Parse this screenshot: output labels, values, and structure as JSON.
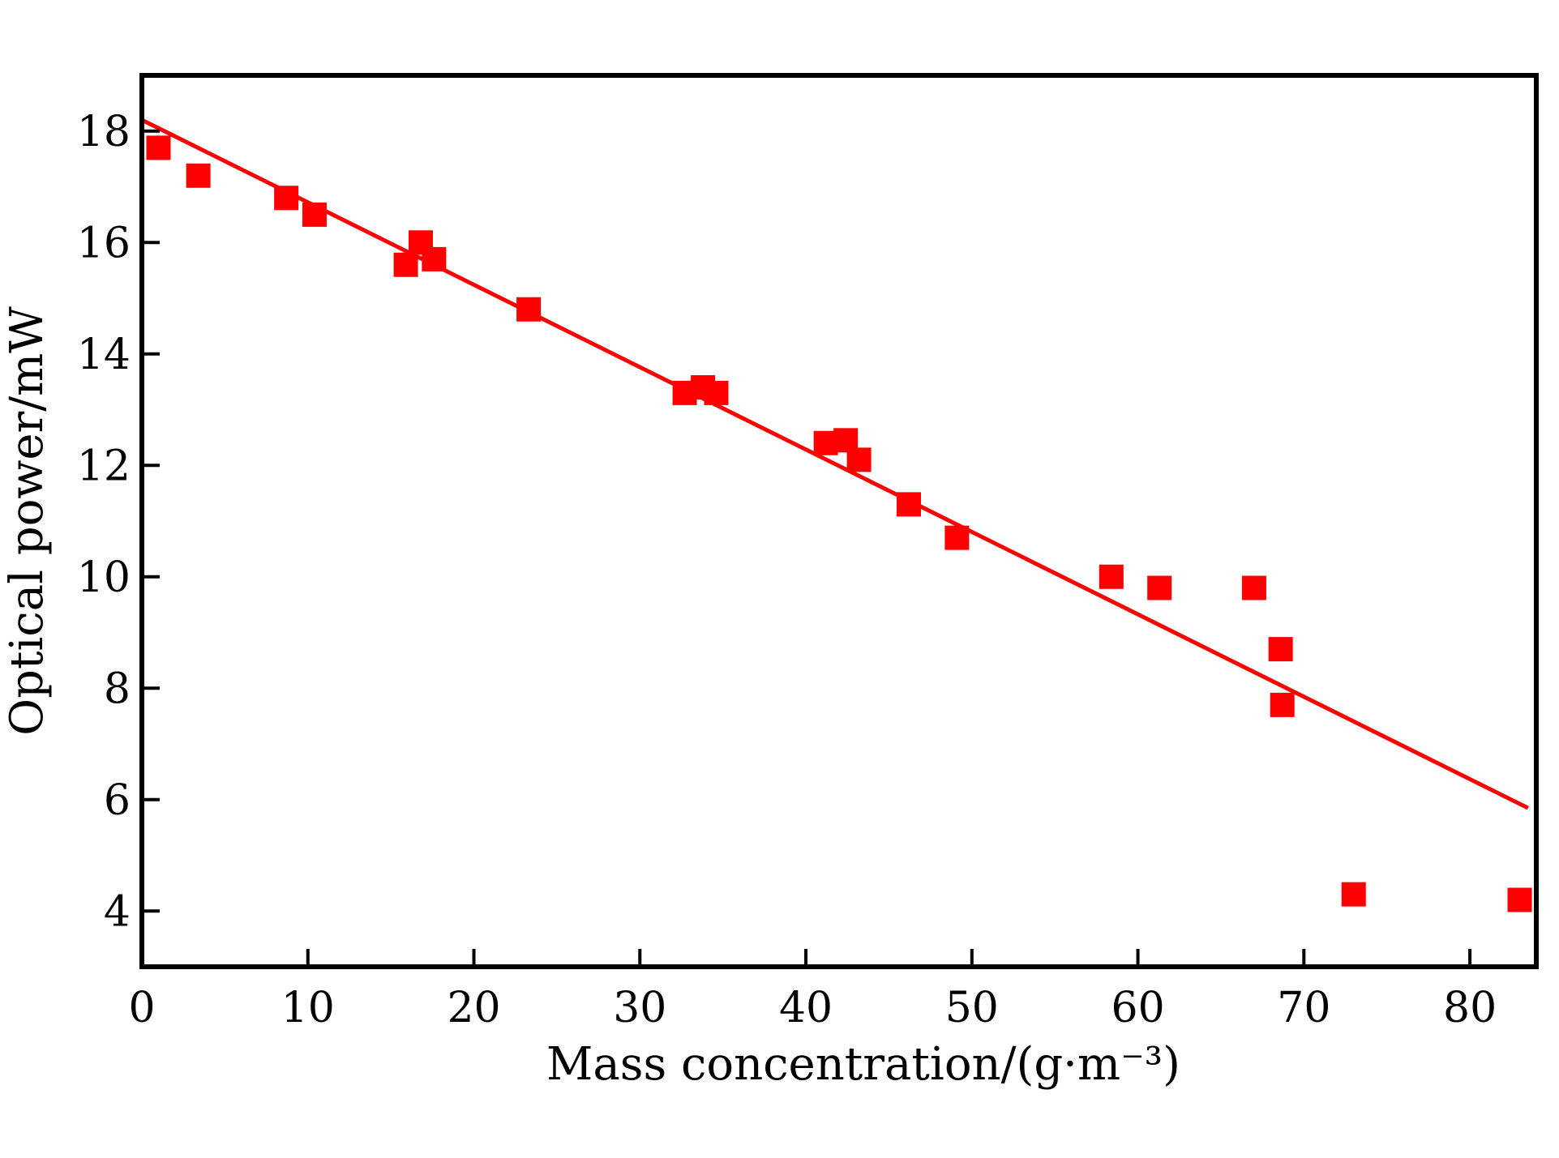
{
  "chart_data": {
    "type": "scatter",
    "xlabel": "Mass concentration/(g·m⁻³)",
    "ylabel": "Optical power/mW",
    "xlim": [
      0,
      84
    ],
    "ylim": [
      3,
      19
    ],
    "x_ticks": [
      0,
      10,
      20,
      30,
      40,
      50,
      60,
      70,
      80
    ],
    "y_ticks": [
      4,
      6,
      8,
      10,
      12,
      14,
      16,
      18
    ],
    "grid": false,
    "series": [
      {
        "type": "scatter",
        "marker": "square",
        "color": "#ff0000",
        "points": [
          {
            "x": 1.0,
            "y": 17.7
          },
          {
            "x": 3.4,
            "y": 17.2
          },
          {
            "x": 8.7,
            "y": 16.8
          },
          {
            "x": 10.4,
            "y": 16.5
          },
          {
            "x": 15.9,
            "y": 15.6
          },
          {
            "x": 16.8,
            "y": 16.0
          },
          {
            "x": 17.6,
            "y": 15.7
          },
          {
            "x": 23.3,
            "y": 14.8
          },
          {
            "x": 32.7,
            "y": 13.3
          },
          {
            "x": 33.8,
            "y": 13.4
          },
          {
            "x": 34.6,
            "y": 13.3
          },
          {
            "x": 41.2,
            "y": 12.4
          },
          {
            "x": 42.4,
            "y": 12.45
          },
          {
            "x": 43.2,
            "y": 12.1
          },
          {
            "x": 46.2,
            "y": 11.3
          },
          {
            "x": 49.1,
            "y": 10.7
          },
          {
            "x": 58.4,
            "y": 10.0
          },
          {
            "x": 61.3,
            "y": 9.8
          },
          {
            "x": 67.0,
            "y": 9.8
          },
          {
            "x": 68.6,
            "y": 8.7
          },
          {
            "x": 68.7,
            "y": 7.7
          },
          {
            "x": 73.0,
            "y": 4.3
          },
          {
            "x": 83.0,
            "y": 4.2
          }
        ]
      },
      {
        "type": "line",
        "color": "#ff0000",
        "points": [
          {
            "x": 0,
            "y": 18.2
          },
          {
            "x": 83.5,
            "y": 5.85
          }
        ]
      }
    ]
  }
}
